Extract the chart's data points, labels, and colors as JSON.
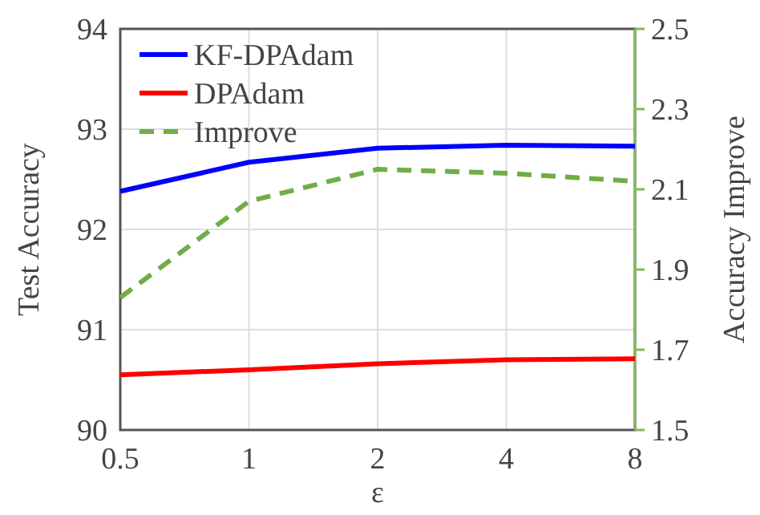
{
  "chart_data": {
    "type": "line",
    "xlabel": "ε",
    "ylabel": "Test Accuracy",
    "y2label": "Accuracy Improve",
    "categories": [
      "0.5",
      "1",
      "2",
      "4",
      "8"
    ],
    "series": [
      {
        "name": "KF-DPAdam",
        "color": "#0000ff",
        "values": [
          92.38,
          92.67,
          92.81,
          92.84,
          92.83
        ]
      },
      {
        "name": "DPAdam",
        "color": "#ff0000",
        "values": [
          90.55,
          90.6,
          90.66,
          90.7,
          90.71
        ]
      },
      {
        "name": "Improve",
        "color": "#70ad47",
        "values": [
          1.83,
          2.07,
          2.15,
          2.14,
          2.12
        ],
        "axis": "y2",
        "line_style": "dashed"
      }
    ],
    "ylim": [
      90,
      94
    ],
    "yticks": [
      90,
      91,
      92,
      93,
      94
    ],
    "y2lim": [
      1.5,
      2.5
    ],
    "y2ticks": [
      1.5,
      1.7,
      1.9,
      2.1,
      2.3,
      2.5
    ],
    "grid": true,
    "legend": "top left",
    "marker": "none"
  }
}
